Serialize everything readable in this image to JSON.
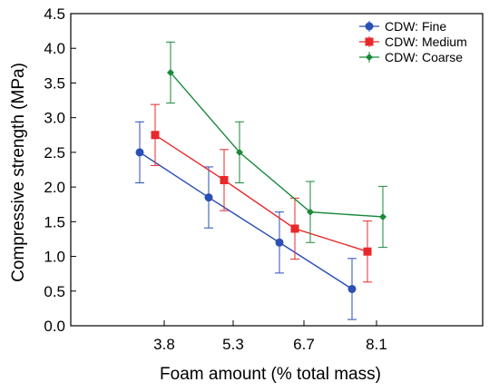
{
  "chart_data": {
    "type": "line",
    "xlabel": "Foam amount (% total mass)",
    "ylabel": "Compressive strength (MPa)",
    "categories": [
      "3.8",
      "5.3",
      "6.7",
      "8.1"
    ],
    "ylim": [
      0,
      4.5
    ],
    "yticks": [
      "0.0",
      "0.5",
      "1.0",
      "1.5",
      "2.0",
      "2.5",
      "3.0",
      "3.5",
      "4.0",
      "4.5"
    ],
    "grid": false,
    "legend_position": "top-right",
    "error_bars": true,
    "series": [
      {
        "name": "CDW: Fine",
        "color": "#2a4fb5",
        "marker": "circle",
        "values": [
          2.5,
          1.85,
          1.2,
          0.53
        ],
        "error_low": [
          2.06,
          1.41,
          0.76,
          0.09
        ],
        "error_high": [
          2.94,
          2.29,
          1.64,
          0.97
        ]
      },
      {
        "name": "CDW: Medium",
        "color": "#e8282b",
        "marker": "square",
        "values": [
          2.75,
          2.1,
          1.4,
          1.07
        ],
        "error_low": [
          2.31,
          1.66,
          0.96,
          0.63
        ],
        "error_high": [
          3.19,
          2.54,
          1.84,
          1.51
        ]
      },
      {
        "name": "CDW: Coarse",
        "color": "#1a8a3a",
        "marker": "diamond",
        "values": [
          3.65,
          2.5,
          1.64,
          1.57
        ],
        "error_low": [
          3.21,
          2.06,
          1.2,
          1.13
        ],
        "error_high": [
          4.09,
          2.94,
          2.08,
          2.01
        ]
      }
    ]
  }
}
